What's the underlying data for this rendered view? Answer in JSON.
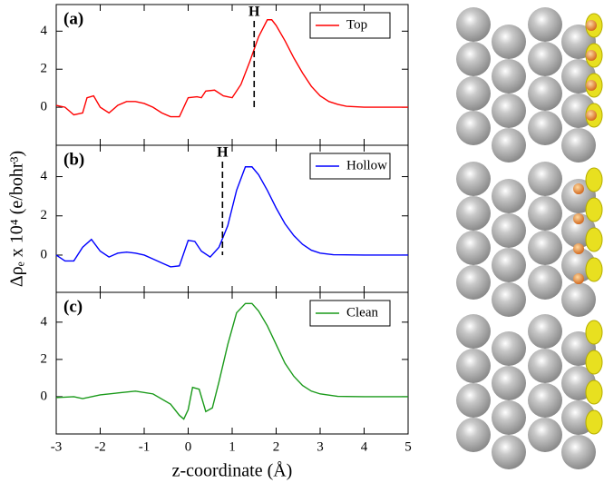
{
  "chart_data": [
    {
      "type": "line",
      "panel_label": "(a)",
      "legend": "upper right",
      "x": [
        -3,
        -2.8,
        -2.6,
        -2.4,
        -2.3,
        -2.15,
        -2,
        -1.8,
        -1.6,
        -1.4,
        -1.2,
        -1,
        -0.8,
        -0.6,
        -0.4,
        -0.2,
        0,
        0.2,
        0.3,
        0.4,
        0.6,
        0.8,
        1,
        1.2,
        1.4,
        1.6,
        1.8,
        1.9,
        2,
        2.2,
        2.4,
        2.6,
        2.8,
        3,
        3.2,
        3.4,
        3.6,
        4,
        4.5,
        5
      ],
      "series": [
        {
          "name": "Top",
          "color": "#ff0000",
          "values": [
            0.1,
            0,
            -0.4,
            -0.3,
            0.5,
            0.6,
            0,
            -0.3,
            0.1,
            0.3,
            0.3,
            0.2,
            0,
            -0.3,
            -0.5,
            -0.5,
            0.5,
            0.55,
            0.5,
            0.85,
            0.9,
            0.6,
            0.5,
            1.2,
            2.4,
            3.7,
            4.6,
            4.6,
            4.3,
            3.5,
            2.6,
            1.8,
            1.1,
            0.6,
            0.3,
            0.15,
            0.05,
            0,
            0,
            0
          ]
        }
      ],
      "annotations": [
        {
          "text": "H",
          "x": 1.5
        }
      ],
      "xlim": [
        -3,
        5
      ],
      "xticks": [
        -3,
        -2,
        -1,
        0,
        1,
        2,
        3,
        4,
        5
      ],
      "ylim": [
        -2,
        5.4
      ],
      "yticks": [
        0,
        2,
        4
      ]
    },
    {
      "type": "line",
      "panel_label": "(b)",
      "legend": "upper right",
      "y_label": "Δρₑ x 10⁴ (e/bohr³)",
      "x": [
        -3,
        -2.8,
        -2.6,
        -2.4,
        -2.2,
        -2,
        -1.8,
        -1.6,
        -1.4,
        -1.2,
        -1,
        -0.8,
        -0.6,
        -0.4,
        -0.2,
        0,
        0.15,
        0.3,
        0.5,
        0.7,
        0.9,
        1.1,
        1.3,
        1.45,
        1.6,
        1.8,
        2,
        2.2,
        2.4,
        2.6,
        2.8,
        3,
        3.3,
        4,
        5
      ],
      "series": [
        {
          "name": "Hollow",
          "color": "#0000ff",
          "values": [
            0,
            -0.3,
            -0.3,
            0.4,
            0.8,
            0.2,
            -0.1,
            0.1,
            0.15,
            0.1,
            0,
            -0.2,
            -0.4,
            -0.6,
            -0.55,
            0.75,
            0.7,
            0.2,
            -0.1,
            0.4,
            1.5,
            3.3,
            4.5,
            4.5,
            4.1,
            3.3,
            2.4,
            1.6,
            1,
            0.55,
            0.25,
            0.1,
            0.02,
            0,
            0
          ]
        }
      ],
      "annotations": [
        {
          "text": "H",
          "x": 0.78
        }
      ],
      "xlim": [
        -3,
        5
      ],
      "xticks": [
        -3,
        -2,
        -1,
        0,
        1,
        2,
        3,
        4,
        5
      ],
      "ylim": [
        -1.9,
        5.6
      ],
      "yticks": [
        0,
        2,
        4
      ]
    },
    {
      "type": "line",
      "panel_label": "(c)",
      "legend": "upper right",
      "x_label": "z-coordinate (Å)",
      "x": [
        -3,
        -2.6,
        -2.4,
        -2,
        -1.6,
        -1.2,
        -0.8,
        -0.4,
        -0.2,
        -0.1,
        0,
        0.1,
        0.25,
        0.4,
        0.55,
        0.7,
        0.9,
        1.1,
        1.3,
        1.45,
        1.6,
        1.8,
        2,
        2.2,
        2.4,
        2.6,
        2.8,
        3,
        3.4,
        4,
        5
      ],
      "series": [
        {
          "name": "Clean",
          "color": "#1a9a1a",
          "values": [
            -0.05,
            0,
            -0.1,
            0.1,
            0.2,
            0.3,
            0.15,
            -0.4,
            -1.0,
            -1.2,
            -0.7,
            0.5,
            0.4,
            -0.8,
            -0.6,
            0.8,
            2.8,
            4.5,
            5.0,
            5.0,
            4.6,
            3.8,
            2.8,
            1.8,
            1.1,
            0.6,
            0.3,
            0.15,
            0.02,
            0,
            0
          ]
        }
      ],
      "xlim": [
        -3,
        5
      ],
      "xticks": [
        -3,
        -2,
        -1,
        0,
        1,
        2,
        3,
        4,
        5
      ],
      "ylim": [
        -2,
        5.6
      ],
      "yticks": [
        0,
        2,
        4
      ]
    }
  ]
}
